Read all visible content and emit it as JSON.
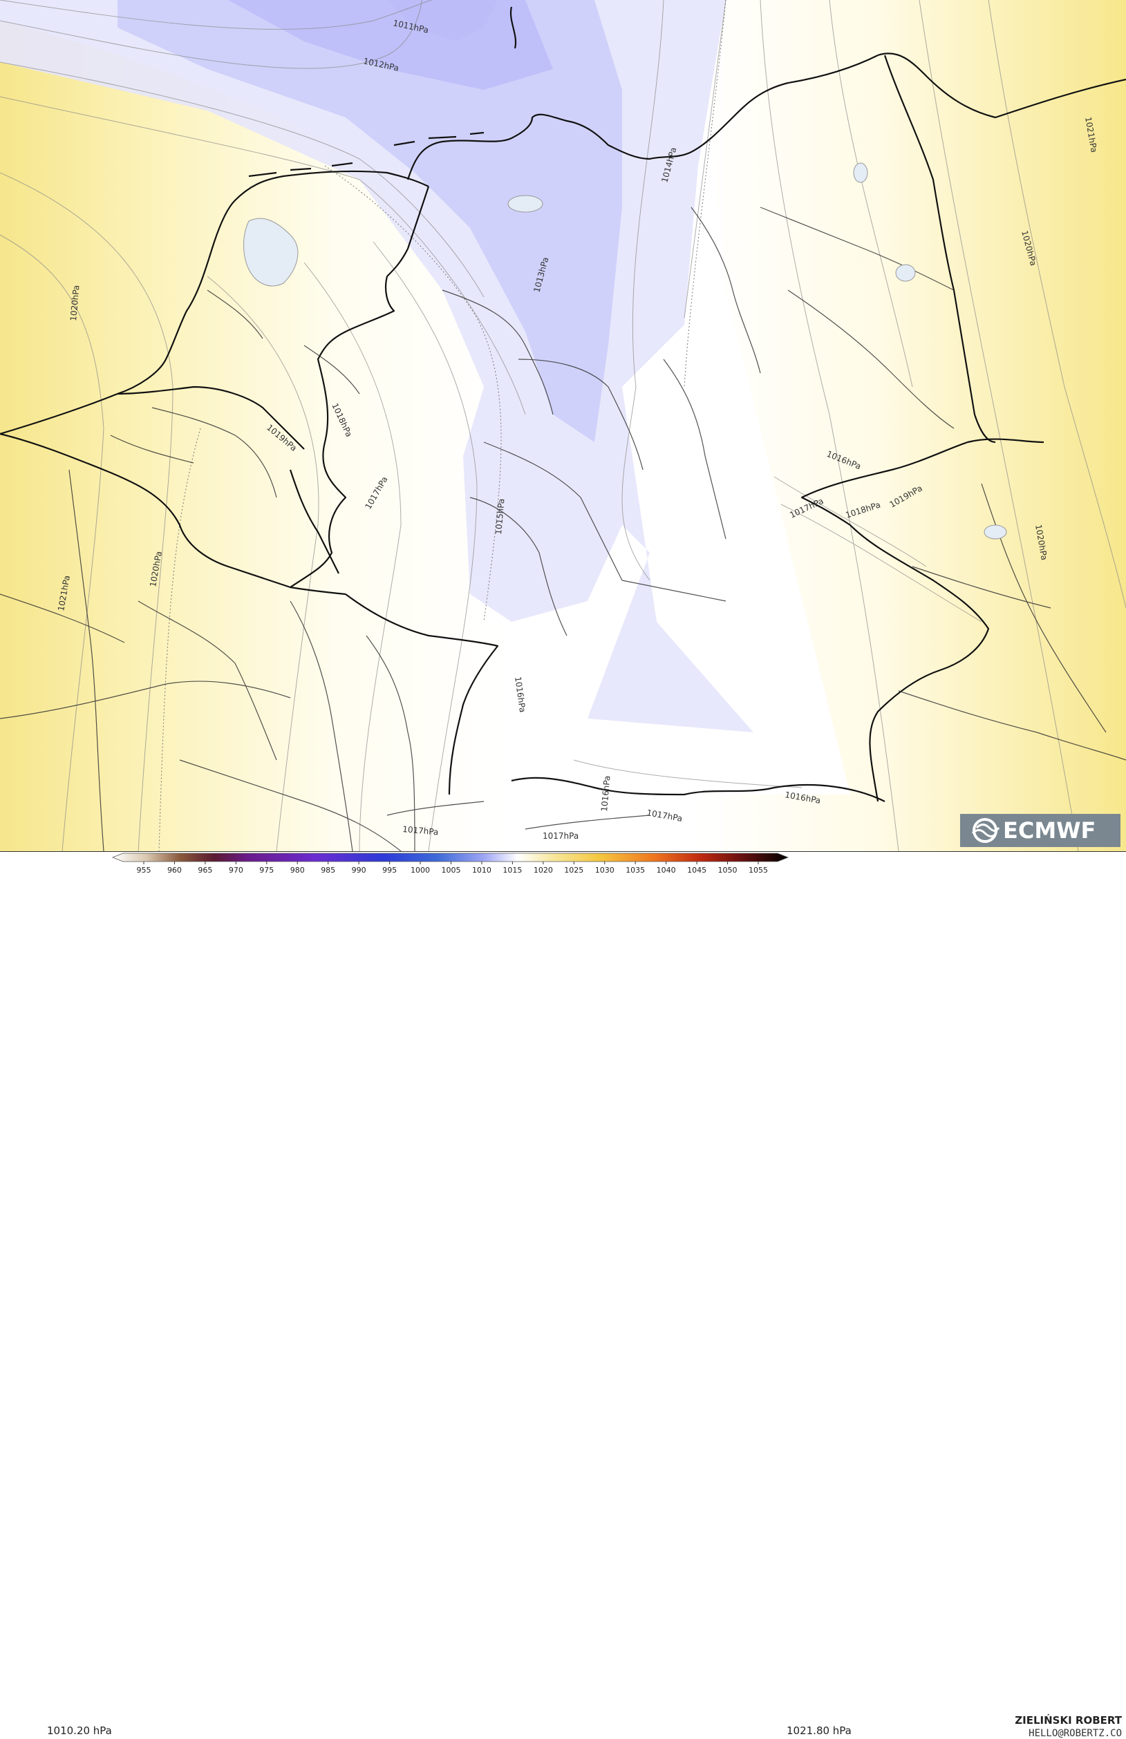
{
  "legend": {
    "min_label": "1010.20 hPa",
    "max_label": "1021.80 hPa",
    "ticks": [
      "955",
      "960",
      "965",
      "970",
      "975",
      "980",
      "985",
      "990",
      "995",
      "1000",
      "1005",
      "1010",
      "1015",
      "1020",
      "1025",
      "1030",
      "1035",
      "1040",
      "1045",
      "1050",
      "1055"
    ]
  },
  "credit": {
    "author": "ZIELIŃSKI ROBERT",
    "email": "HELLO@ROBERTZ.CO"
  },
  "logo": {
    "text": "ECMWF",
    "icon": "ecmwf-logo-icon"
  },
  "isobar_labels": [
    {
      "text": "1011hPa"
    },
    {
      "text": "1012hPa"
    },
    {
      "text": "1013hPa"
    },
    {
      "text": "1014hPa"
    },
    {
      "text": "1015hPa"
    },
    {
      "text": "1016hPa"
    },
    {
      "text": "1016hPa"
    },
    {
      "text": "1016hPa"
    },
    {
      "text": "1016hPa"
    },
    {
      "text": "1017hPa"
    },
    {
      "text": "1017hPa"
    },
    {
      "text": "1017hPa"
    },
    {
      "text": "1017hPa"
    },
    {
      "text": "1017hPa"
    },
    {
      "text": "1018hPa"
    },
    {
      "text": "1018hPa"
    },
    {
      "text": "1019hPa"
    },
    {
      "text": "1019hPa"
    },
    {
      "text": "1020hPa"
    },
    {
      "text": "1020hPa"
    },
    {
      "text": "1020hPa"
    },
    {
      "text": "1020hPa"
    },
    {
      "text": "1021hPa"
    },
    {
      "text": "1021hPa"
    }
  ],
  "colors": {
    "low_pressure": "#a8abf5",
    "neutral": "#ffffff",
    "high_pressure": "#f8e88a",
    "borders": "#111111"
  }
}
